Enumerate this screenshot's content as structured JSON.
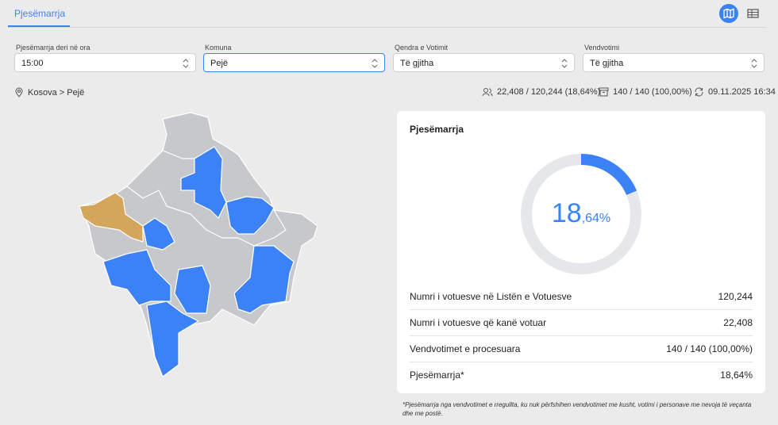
{
  "tabs": [
    "Pjesëmarrja"
  ],
  "filters": [
    {
      "label": "Pjesëmarrja deri në ora",
      "value": "15:00"
    },
    {
      "label": "Komuna",
      "value": "Pejë"
    },
    {
      "label": "Qendra e Votimit",
      "value": "Të gjitha"
    },
    {
      "label": "Vendvotimi",
      "value": "Të gjitha"
    }
  ],
  "breadcrumb": "Kosova > Pejë",
  "stats": {
    "voters": "22,408 / 120,244 (18,64%)",
    "stations": "140 / 140 (100,00%)",
    "updated": "09.11.2025 16:34"
  },
  "card": {
    "title": "Pjesëmarrja",
    "donut": {
      "value": 18.64,
      "label_main": "18",
      "label_fraction": ",64%"
    },
    "rows": [
      [
        "Numri i votuesve në Listën e Votuesve",
        "120,244"
      ],
      [
        "Numri i votuesve që kanë votuar",
        "22,408"
      ],
      [
        "Vendvotimet e procesuara",
        "140 / 140 (100,00%)"
      ],
      [
        "Pjesëmarrja*",
        "18,64%"
      ]
    ],
    "footnote": "*Pjesëmarrja nga vendvotimet e rregullta, ku nuk përfshihen vendvotimet me kusht, votimi i personave me nevoja të veçanta dhe me postë."
  }
}
